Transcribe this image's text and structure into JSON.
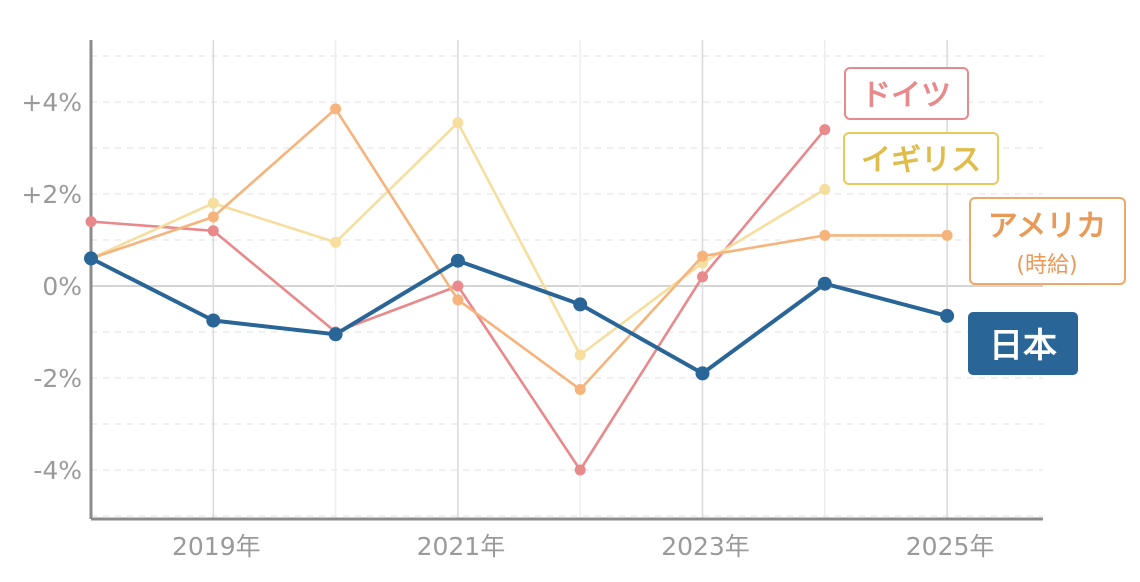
{
  "chart_data": {
    "type": "line",
    "x": [
      "2018",
      "2019",
      "2020",
      "2021",
      "2022",
      "2023",
      "2024",
      "2025"
    ],
    "x_tick_labels": [
      "2019年",
      "2021年",
      "2023年",
      "2025年"
    ],
    "x_tick_values": [
      "2019",
      "2021",
      "2023",
      "2025"
    ],
    "y_tick_labels": [
      "+4%",
      "+2%",
      "0%",
      "-2%",
      "-4%"
    ],
    "y_tick_values": [
      4,
      2,
      0,
      -2,
      -4
    ],
    "ylim": [
      -5.2,
      5.3
    ],
    "xlim": [
      2018,
      2026
    ],
    "grid": true,
    "series": [
      {
        "name": "ドイツ",
        "color": "#e8898c",
        "values": [
          1.4,
          1.2,
          -1.0,
          0.0,
          -4.0,
          0.2,
          3.4,
          null
        ]
      },
      {
        "name": "イギリス",
        "color": "#f6de9e",
        "values": [
          0.6,
          1.8,
          0.95,
          3.55,
          -1.5,
          0.5,
          2.1,
          null
        ]
      },
      {
        "name": "アメリカ",
        "sublabel": "(時給)",
        "color": "#f6b47c",
        "values": [
          0.6,
          1.5,
          3.85,
          -0.3,
          -2.25,
          0.65,
          1.1,
          1.1
        ]
      },
      {
        "name": "日本",
        "color": "#2a6598",
        "values": [
          0.6,
          -0.75,
          -1.05,
          0.55,
          -0.4,
          -1.9,
          0.05,
          -0.65
        ]
      }
    ],
    "legend_placement": "right, inline labels"
  },
  "legend": {
    "germany": "ドイツ",
    "uk": "イギリス",
    "usa": "アメリカ",
    "usa_sub": "(時給)",
    "japan": "日本"
  }
}
